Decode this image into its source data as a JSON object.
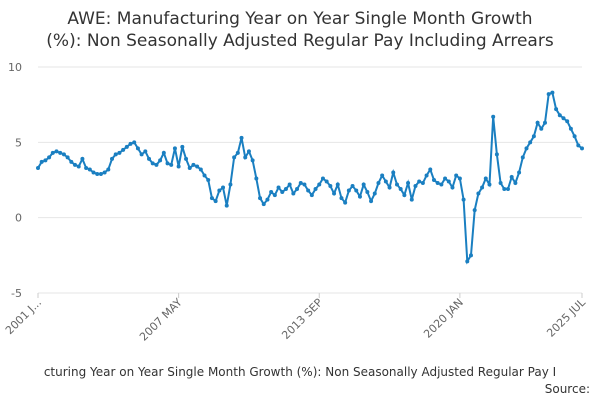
{
  "chart_data": {
    "type": "line",
    "title": [
      "AWE: Manufacturing Year on Year Single Month Growth",
      "(%): Non Seasonally Adjusted Regular Pay Including Arrears"
    ],
    "footer": "cturing Year on Year Single Month Growth (%): Non Seasonally Adjusted Regular Pay I",
    "source": "Source:",
    "color": "#1a7fc1",
    "grid": true,
    "ylim": [
      -5,
      10
    ],
    "yticks": [
      -5,
      0,
      5,
      10
    ],
    "categories": [
      "2001 J...",
      null,
      null,
      null,
      null,
      null,
      null,
      null,
      null,
      null,
      null,
      null,
      null,
      null,
      null,
      null,
      null,
      null,
      null,
      null,
      null,
      null,
      null,
      null,
      null,
      null,
      null,
      null,
      null,
      null,
      null,
      null,
      null,
      null,
      null,
      null,
      null,
      null,
      "2007 MAY",
      null,
      null,
      null,
      null,
      null,
      null,
      null,
      null,
      null,
      null,
      null,
      null,
      null,
      null,
      null,
      null,
      null,
      null,
      null,
      null,
      null,
      null,
      null,
      null,
      null,
      null,
      null,
      null,
      null,
      null,
      null,
      null,
      null,
      null,
      null,
      null,
      null,
      "2013 SEP",
      null,
      null,
      null,
      null,
      null,
      null,
      null,
      null,
      null,
      null,
      null,
      null,
      null,
      null,
      null,
      null,
      null,
      null,
      null,
      null,
      null,
      null,
      null,
      null,
      null,
      null,
      null,
      null,
      null,
      null,
      null,
      null,
      null,
      null,
      null,
      null,
      null,
      "2020 JAN",
      null,
      null,
      null,
      null,
      null,
      null,
      null,
      null,
      null,
      null,
      null,
      null,
      null,
      null,
      null,
      null,
      null,
      null,
      null,
      null,
      null,
      null,
      null,
      null,
      null,
      null,
      null,
      null,
      null,
      null,
      null,
      null,
      "2025 JUL"
    ],
    "values": [
      3.3,
      3.7,
      3.8,
      4.0,
      4.3,
      4.4,
      4.3,
      4.2,
      4.0,
      3.7,
      3.5,
      3.4,
      3.9,
      3.3,
      3.2,
      3.0,
      2.9,
      2.9,
      3.0,
      3.2,
      3.9,
      4.2,
      4.3,
      4.5,
      4.7,
      4.9,
      5.0,
      4.6,
      4.2,
      4.4,
      3.9,
      3.6,
      3.5,
      3.8,
      4.3,
      3.6,
      3.5,
      4.6,
      3.4,
      4.7,
      3.9,
      3.3,
      3.5,
      3.4,
      3.2,
      2.8,
      2.5,
      1.3,
      1.1,
      1.8,
      2.0,
      0.8,
      2.2,
      4.0,
      4.3,
      5.3,
      4.0,
      4.4,
      3.8,
      2.6,
      1.3,
      0.9,
      1.2,
      1.7,
      1.5,
      2.0,
      1.7,
      1.9,
      2.2,
      1.6,
      1.9,
      2.3,
      2.2,
      1.8,
      1.5,
      1.9,
      2.2,
      2.6,
      2.4,
      2.1,
      1.6,
      2.2,
      1.3,
      1.0,
      1.8,
      2.1,
      1.8,
      1.4,
      2.2,
      1.7,
      1.1,
      1.6,
      2.3,
      2.8,
      2.4,
      2.0,
      3.0,
      2.2,
      1.9,
      1.5,
      2.3,
      1.2,
      2.1,
      2.4,
      2.3,
      2.8,
      3.2,
      2.5,
      2.3,
      2.2,
      2.6,
      2.4,
      2.0,
      2.8,
      2.6,
      1.2,
      -2.9,
      -2.5,
      0.5,
      1.6,
      2.0,
      2.6,
      2.2,
      6.7,
      4.2,
      2.3,
      1.9,
      1.9,
      2.7,
      2.3,
      3.0,
      4.0,
      4.6,
      5.0,
      5.4,
      6.3,
      5.9,
      6.3,
      8.2,
      8.3,
      7.2,
      6.8,
      6.6,
      6.4,
      5.9,
      5.4,
      4.8,
      4.6
    ]
  }
}
